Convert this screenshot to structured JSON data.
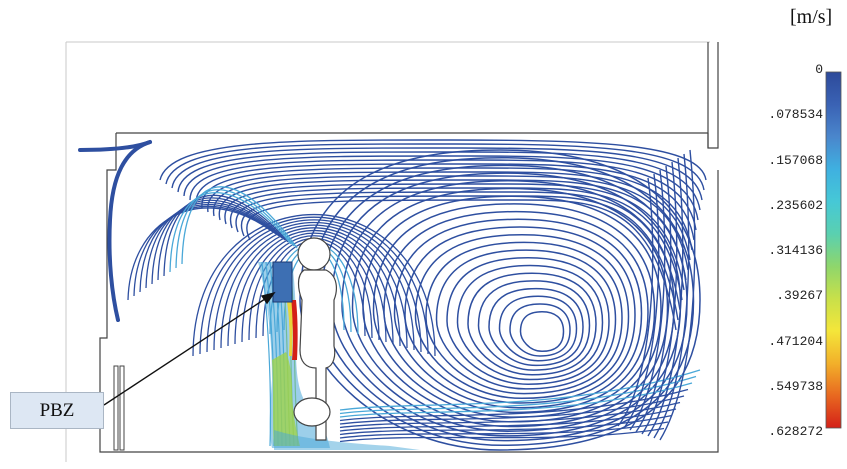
{
  "diagram": {
    "unit_label": "[m/s]",
    "callout_label": "PBZ",
    "colorbar": {
      "ticks": [
        "0",
        ".078534",
        ".157068",
        ".235602",
        ".314136",
        ".39267",
        ".471204",
        ".549738",
        ".628272"
      ],
      "colors": [
        "#2d4a9a",
        "#3a62b4",
        "#4a86cc",
        "#3fb0e0",
        "#46c8d6",
        "#5ad0b0",
        "#8ed66c",
        "#c8e04a",
        "#f4e63a",
        "#f2b02a",
        "#e86820",
        "#d42018"
      ]
    },
    "streamline_colors": {
      "slow": "#2e4fa0",
      "medium": "#4aa8d8",
      "fast": "#9fd24a",
      "fastest": "#e8d43a",
      "peak": "#d42018"
    },
    "occupant_color": "#ffffff",
    "pbz_sensor_color": "#3d6fb3"
  }
}
